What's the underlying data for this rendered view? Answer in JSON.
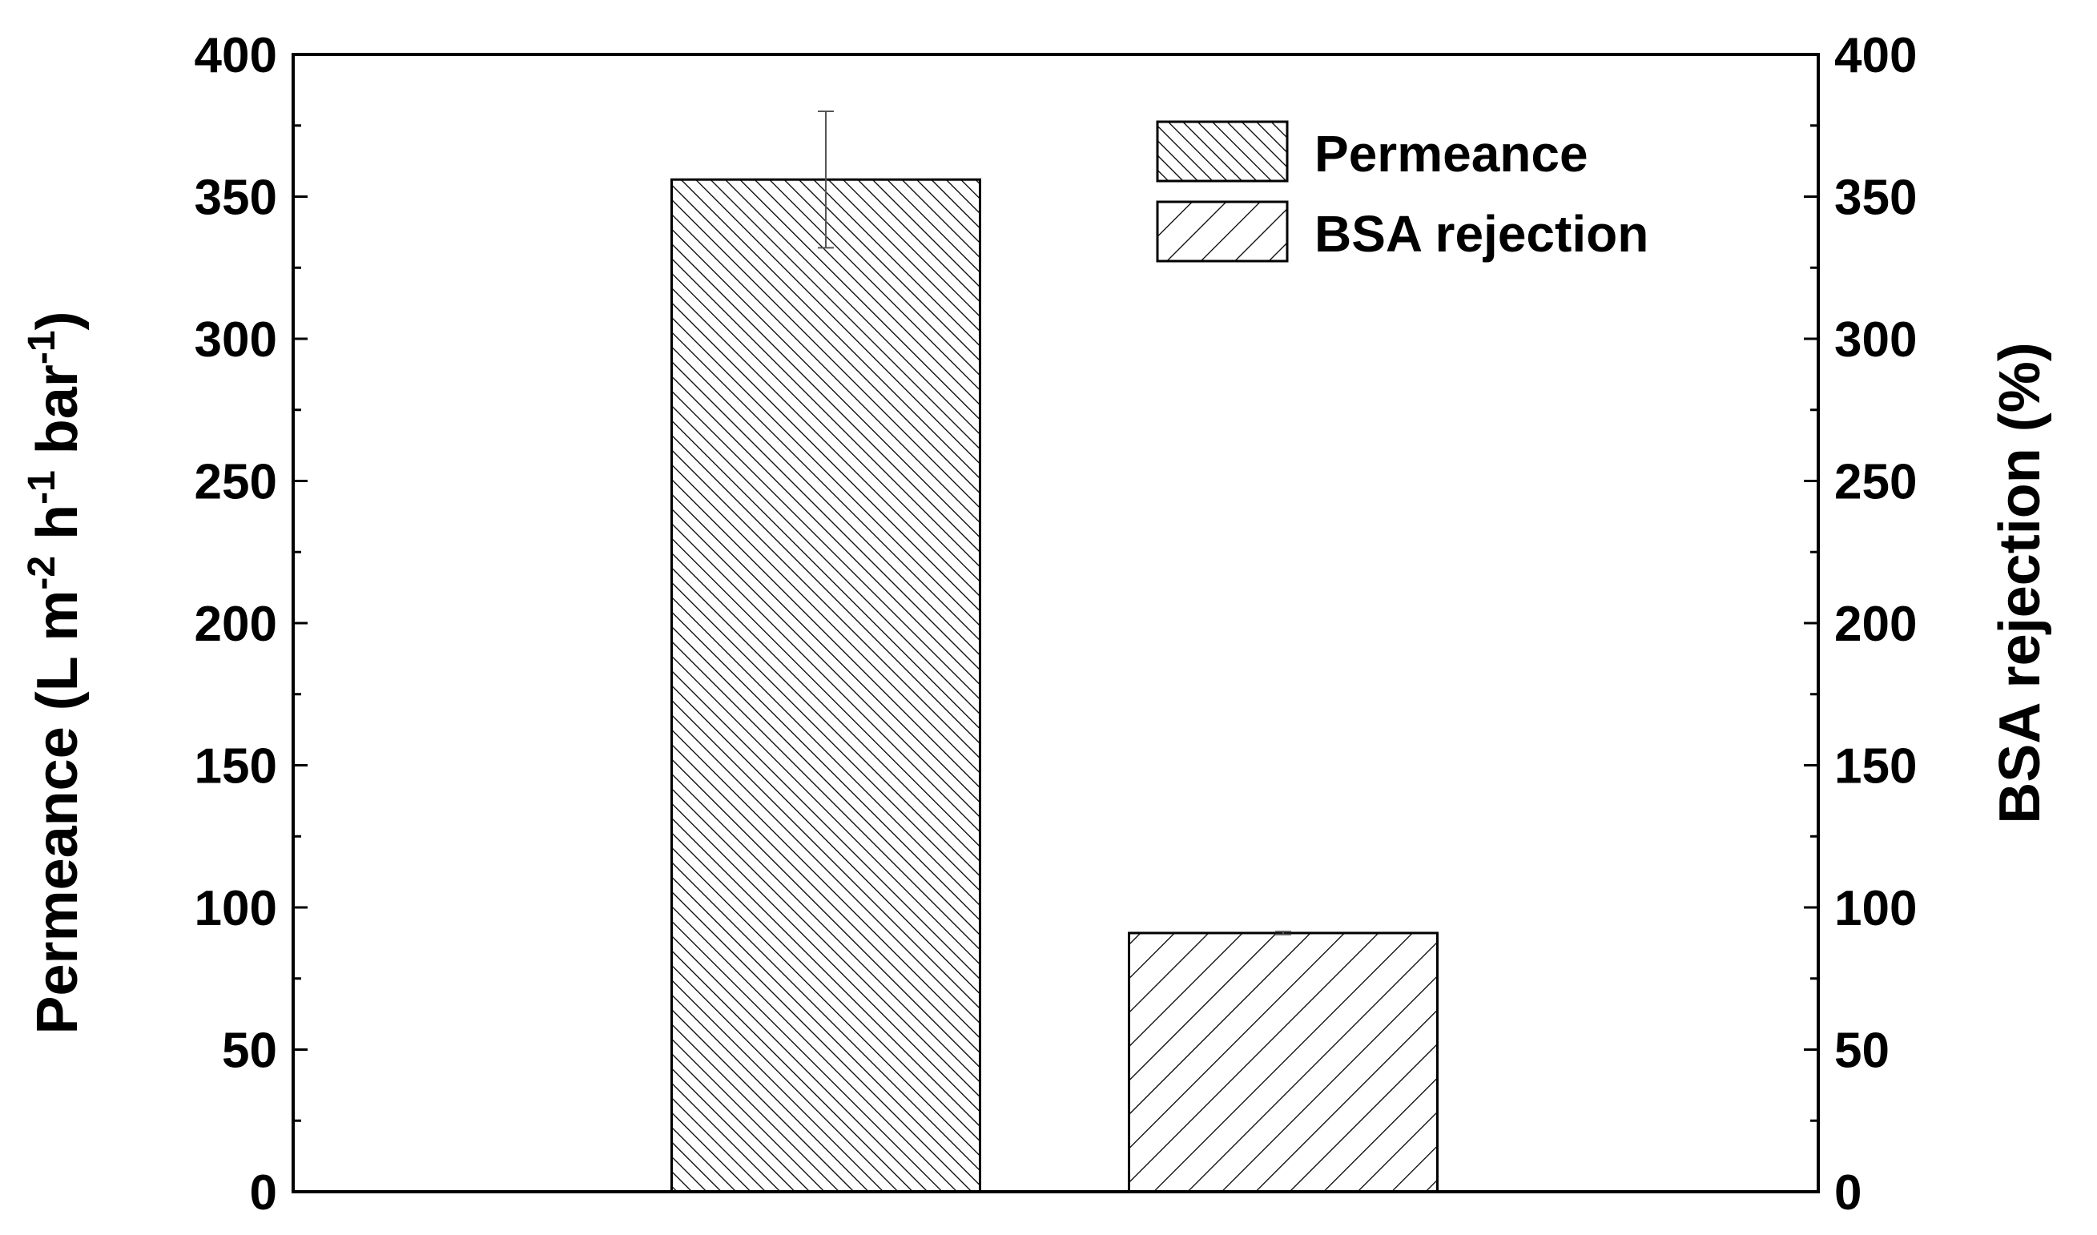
{
  "chart_data": {
    "type": "bar",
    "categories": [
      "Permeance",
      "BSA rejection"
    ],
    "series": [
      {
        "name": "Permeance",
        "axis": "left",
        "value": 356,
        "error": 24,
        "pattern": "dense-diagonal"
      },
      {
        "name": "BSA rejection",
        "axis": "right",
        "value": 91,
        "error": 0.5,
        "pattern": "sparse-backslash"
      }
    ],
    "y_left": {
      "label_main": "Permeance (L m",
      "sup1": "-2",
      "label_mid1": " h",
      "sup2": "-1",
      "label_mid2": " bar",
      "sup3": "-1",
      "label_end": ")",
      "lim": [
        0,
        400
      ],
      "ticks": [
        "0",
        "50",
        "100",
        "150",
        "200",
        "250",
        "300",
        "350",
        "400"
      ]
    },
    "y_right": {
      "label": "BSA rejection (%)",
      "lim": [
        0,
        400
      ],
      "ticks": [
        "0",
        "50",
        "100",
        "150",
        "200",
        "250",
        "300",
        "350",
        "400"
      ]
    },
    "legend": {
      "position": "top-right",
      "items": [
        "Permeance",
        "BSA rejection"
      ]
    },
    "grid": false
  }
}
